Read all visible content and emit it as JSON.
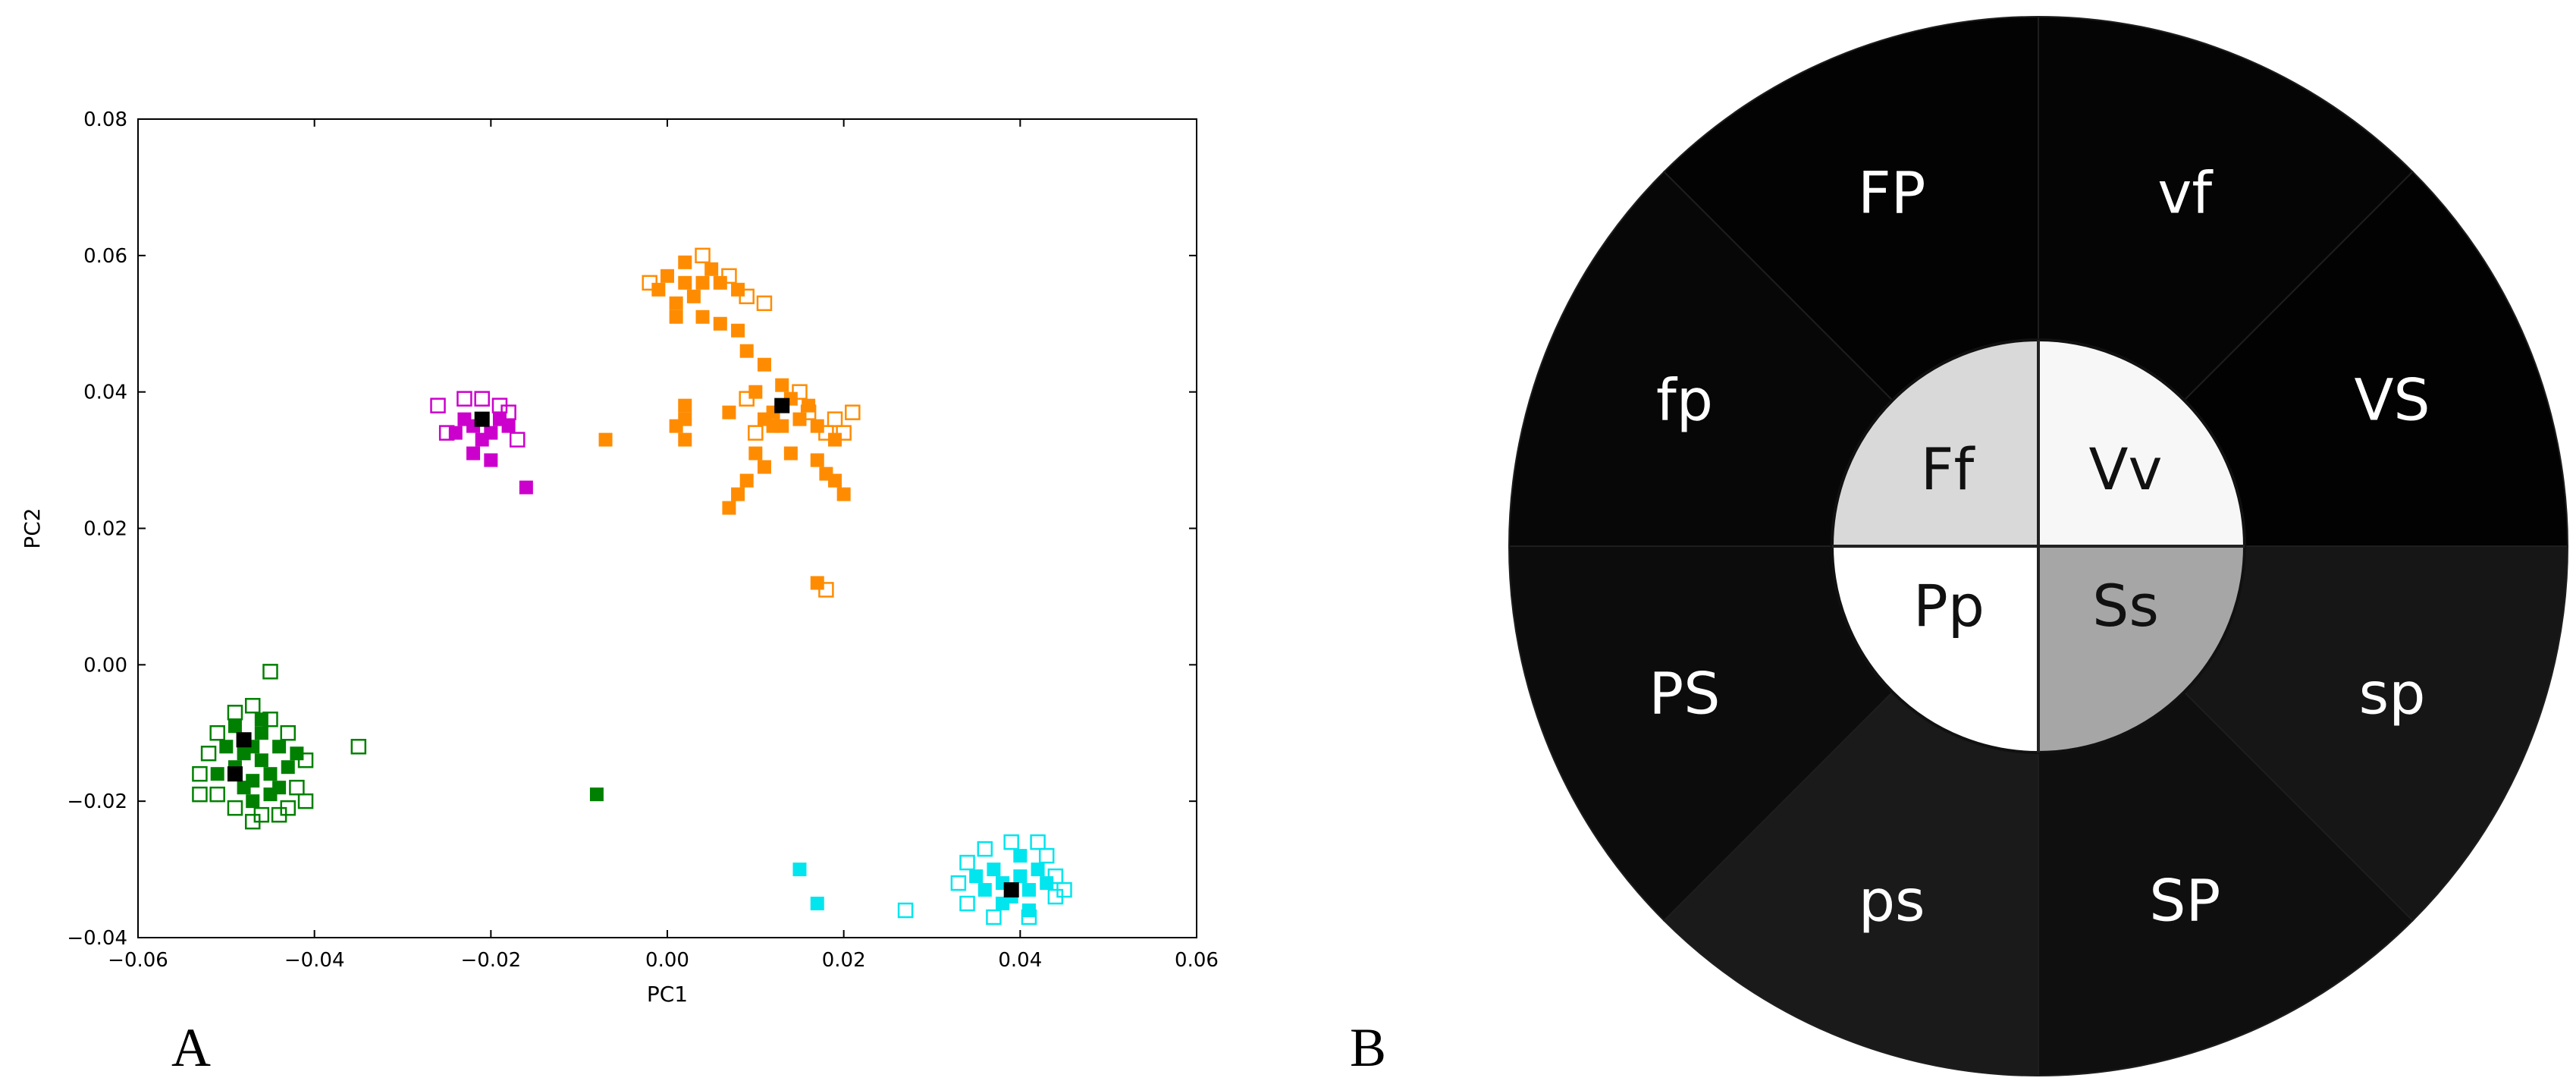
{
  "panel_labels": [
    "A",
    "B"
  ],
  "chart_data": [
    {
      "type": "scatter",
      "title": "",
      "xlabel": "PC1",
      "ylabel": "PC2",
      "xlim": [
        -0.06,
        0.06
      ],
      "ylim": [
        -0.04,
        0.08
      ],
      "x_ticks": [
        "−0.06",
        "−0.04",
        "−0.02",
        "0.00",
        "0.02",
        "0.04",
        "0.06"
      ],
      "y_ticks": [
        "−0.04",
        "−0.02",
        "0.00",
        "0.02",
        "0.04",
        "0.06",
        "0.08"
      ],
      "grid": false,
      "marker": "square",
      "clusters": [
        {
          "color": "#ff8c00",
          "filled": [
            [
              0.0,
              0.057
            ],
            [
              0.002,
              0.059
            ],
            [
              0.004,
              0.056
            ],
            [
              -0.001,
              0.055
            ],
            [
              0.003,
              0.054
            ],
            [
              0.006,
              0.056
            ],
            [
              0.001,
              0.053
            ],
            [
              0.005,
              0.058
            ],
            [
              0.008,
              0.055
            ],
            [
              0.002,
              0.056
            ],
            [
              0.004,
              0.051
            ],
            [
              0.001,
              0.051
            ],
            [
              0.006,
              0.05
            ],
            [
              0.008,
              0.049
            ],
            [
              0.009,
              0.046
            ],
            [
              0.011,
              0.044
            ],
            [
              0.01,
              0.04
            ],
            [
              0.012,
              0.037
            ],
            [
              0.013,
              0.035
            ],
            [
              0.011,
              0.036
            ],
            [
              0.014,
              0.039
            ],
            [
              0.015,
              0.036
            ],
            [
              0.016,
              0.038
            ],
            [
              0.013,
              0.041
            ],
            [
              0.017,
              0.035
            ],
            [
              0.019,
              0.033
            ],
            [
              0.01,
              0.031
            ],
            [
              0.011,
              0.029
            ],
            [
              0.009,
              0.027
            ],
            [
              0.008,
              0.025
            ],
            [
              0.007,
              0.023
            ],
            [
              0.014,
              0.031
            ],
            [
              0.018,
              0.028
            ],
            [
              0.019,
              0.027
            ],
            [
              0.02,
              0.025
            ],
            [
              0.017,
              0.012
            ],
            [
              0.002,
              0.038
            ],
            [
              0.002,
              0.036
            ],
            [
              0.002,
              0.033
            ],
            [
              0.001,
              0.035
            ],
            [
              0.007,
              0.037
            ],
            [
              -0.007,
              0.033
            ],
            [
              0.017,
              0.03
            ],
            [
              0.012,
              0.035
            ]
          ],
          "hollow": [
            [
              -0.002,
              0.056
            ],
            [
              0.007,
              0.057
            ],
            [
              0.009,
              0.054
            ],
            [
              0.004,
              0.06
            ],
            [
              0.011,
              0.053
            ],
            [
              0.016,
              0.037
            ],
            [
              0.018,
              0.034
            ],
            [
              0.019,
              0.036
            ],
            [
              0.021,
              0.037
            ],
            [
              0.01,
              0.034
            ],
            [
              0.009,
              0.039
            ],
            [
              0.015,
              0.04
            ],
            [
              0.018,
              0.011
            ],
            [
              0.02,
              0.034
            ]
          ],
          "centroids": [
            [
              0.013,
              0.038
            ]
          ]
        },
        {
          "color": "#cc00cc",
          "filled": [
            [
              -0.021,
              0.036
            ],
            [
              -0.022,
              0.035
            ],
            [
              -0.02,
              0.034
            ],
            [
              -0.023,
              0.036
            ],
            [
              -0.019,
              0.036
            ],
            [
              -0.021,
              0.033
            ],
            [
              -0.022,
              0.031
            ],
            [
              -0.024,
              0.034
            ],
            [
              -0.02,
              0.03
            ],
            [
              -0.018,
              0.035
            ],
            [
              -0.016,
              0.026
            ]
          ],
          "hollow": [
            [
              -0.026,
              0.038
            ],
            [
              -0.023,
              0.039
            ],
            [
              -0.019,
              0.038
            ],
            [
              -0.017,
              0.033
            ],
            [
              -0.025,
              0.034
            ],
            [
              -0.018,
              0.037
            ],
            [
              -0.021,
              0.039
            ]
          ],
          "centroids": [
            [
              -0.021,
              0.036
            ]
          ]
        },
        {
          "color": "#008000",
          "filled": [
            [
              -0.047,
              -0.012
            ],
            [
              -0.046,
              -0.014
            ],
            [
              -0.048,
              -0.013
            ],
            [
              -0.045,
              -0.016
            ],
            [
              -0.049,
              -0.015
            ],
            [
              -0.047,
              -0.017
            ],
            [
              -0.044,
              -0.012
            ],
            [
              -0.046,
              -0.01
            ],
            [
              -0.048,
              -0.018
            ],
            [
              -0.045,
              -0.019
            ],
            [
              -0.05,
              -0.012
            ],
            [
              -0.043,
              -0.015
            ],
            [
              -0.047,
              -0.02
            ],
            [
              -0.049,
              -0.009
            ],
            [
              -0.044,
              -0.018
            ],
            [
              -0.046,
              -0.008
            ],
            [
              -0.042,
              -0.013
            ],
            [
              -0.051,
              -0.016
            ],
            [
              -0.008,
              -0.019
            ]
          ],
          "hollow": [
            [
              -0.052,
              -0.013
            ],
            [
              -0.053,
              -0.016
            ],
            [
              -0.051,
              -0.019
            ],
            [
              -0.049,
              -0.021
            ],
            [
              -0.046,
              -0.022
            ],
            [
              -0.043,
              -0.021
            ],
            [
              -0.042,
              -0.018
            ],
            [
              -0.041,
              -0.014
            ],
            [
              -0.043,
              -0.01
            ],
            [
              -0.045,
              -0.008
            ],
            [
              -0.049,
              -0.007
            ],
            [
              -0.051,
              -0.01
            ],
            [
              -0.047,
              -0.006
            ],
            [
              -0.044,
              -0.022
            ],
            [
              -0.041,
              -0.02
            ],
            [
              -0.045,
              -0.001
            ],
            [
              -0.035,
              -0.012
            ],
            [
              -0.053,
              -0.019
            ],
            [
              -0.047,
              -0.023
            ]
          ],
          "centroids": [
            [
              -0.048,
              -0.011
            ],
            [
              -0.049,
              -0.016
            ]
          ]
        },
        {
          "color": "#00e5ee",
          "filled": [
            [
              0.038,
              -0.032
            ],
            [
              0.04,
              -0.031
            ],
            [
              0.039,
              -0.034
            ],
            [
              0.041,
              -0.033
            ],
            [
              0.037,
              -0.03
            ],
            [
              0.042,
              -0.03
            ],
            [
              0.036,
              -0.033
            ],
            [
              0.043,
              -0.032
            ],
            [
              0.038,
              -0.035
            ],
            [
              0.04,
              -0.028
            ],
            [
              0.035,
              -0.031
            ],
            [
              0.041,
              -0.036
            ],
            [
              0.015,
              -0.03
            ],
            [
              0.017,
              -0.035
            ]
          ],
          "hollow": [
            [
              0.034,
              -0.029
            ],
            [
              0.033,
              -0.032
            ],
            [
              0.036,
              -0.027
            ],
            [
              0.039,
              -0.026
            ],
            [
              0.043,
              -0.028
            ],
            [
              0.044,
              -0.031
            ],
            [
              0.044,
              -0.034
            ],
            [
              0.041,
              -0.037
            ],
            [
              0.037,
              -0.037
            ],
            [
              0.034,
              -0.035
            ],
            [
              0.042,
              -0.026
            ],
            [
              0.027,
              -0.036
            ],
            [
              0.045,
              -0.033
            ]
          ],
          "centroids": [
            [
              0.039,
              -0.033
            ]
          ]
        }
      ]
    },
    {
      "type": "diagram",
      "title": "",
      "inner": [
        {
          "label": "Ff",
          "fill": "#d9d9d9"
        },
        {
          "label": "Vv",
          "fill": "#f7f7f7"
        },
        {
          "label": "Ss",
          "fill": "#a6a6a6"
        },
        {
          "label": "Pp",
          "fill": "#ffffff"
        }
      ],
      "outer": [
        {
          "label": "vf",
          "fill": "#050505"
        },
        {
          "label": "VS",
          "fill": "#020202"
        },
        {
          "label": "sp",
          "fill": "#161616"
        },
        {
          "label": "SP",
          "fill": "#0f0f0f"
        },
        {
          "label": "ps",
          "fill": "#1a1a1a"
        },
        {
          "label": "PS",
          "fill": "#0c0c0c"
        },
        {
          "label": "fp",
          "fill": "#070707"
        },
        {
          "label": "FP",
          "fill": "#030303"
        }
      ]
    }
  ]
}
